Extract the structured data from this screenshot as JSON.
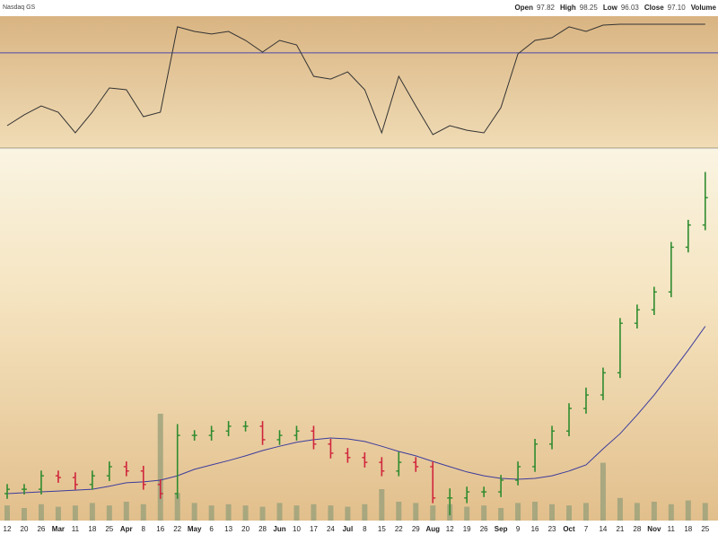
{
  "header": {
    "exchange": "Nasdaq GS",
    "quote": [
      {
        "label": "Open",
        "value": "97.82"
      },
      {
        "label": "High",
        "value": "98.25"
      },
      {
        "label": "Low",
        "value": "96.03"
      },
      {
        "label": "Close",
        "value": "97.10"
      },
      {
        "label": "Volume"
      }
    ]
  },
  "chart_data": [
    {
      "type": "line",
      "ylim": [
        5,
        95
      ],
      "reference": 70,
      "reference_color": "#4a4aa8",
      "series": [
        {
          "color": "#333333",
          "values": [
            20.3,
            27.7,
            33.8,
            29.5,
            15.4,
            29.5,
            46.0,
            44.8,
            26.4,
            29.5,
            87.7,
            84.6,
            82.8,
            84.6,
            78.5,
            70.5,
            78.5,
            75.4,
            54.0,
            52.1,
            57.0,
            44.8,
            15.4,
            54.0,
            33.8,
            14.2,
            20.3,
            17.2,
            15.4,
            32.6,
            69.3,
            78.5,
            80.3,
            87.7,
            84.6,
            88.9,
            89.5,
            89.5,
            89.5,
            89.5,
            89.5,
            89.5
          ]
        }
      ]
    },
    {
      "type": "ohlc",
      "ylim": [
        22.8,
        108.3
      ],
      "up_color": "#2e8b2e",
      "down_color": "#d0243c",
      "categories": [
        "12",
        "20",
        "26",
        "Mar",
        "11",
        "18",
        "25",
        "Apr",
        "8",
        "16",
        "22",
        "May",
        "6",
        "13",
        "20",
        "28",
        "Jun",
        "10",
        "17",
        "24",
        "Jul",
        "8",
        "15",
        "22",
        "29",
        "Aug",
        "12",
        "19",
        "26",
        "Sep",
        "9",
        "16",
        "23",
        "Oct",
        "7",
        "14",
        "21",
        "28",
        "Nov",
        "11",
        "18",
        "25"
      ],
      "open": [
        29.0,
        30.0,
        30.0,
        33.1,
        32.7,
        31.1,
        33.1,
        35.2,
        34.2,
        31.1,
        29.0,
        42.4,
        42.4,
        43.4,
        44.5,
        44.5,
        41.4,
        42.4,
        43.4,
        40.4,
        38.3,
        37.3,
        36.2,
        34.2,
        36.2,
        35.2,
        28.0,
        28.0,
        29.4,
        29.4,
        32.1,
        35.2,
        40.4,
        43.4,
        48.6,
        51.7,
        56.8,
        68.2,
        71.3,
        75.4,
        85.7,
        90.8
      ],
      "high": [
        31.2,
        31.2,
        34.3,
        34.3,
        33.9,
        34.3,
        36.4,
        36.4,
        35.4,
        32.3,
        45.0,
        43.6,
        44.6,
        45.7,
        45.7,
        45.7,
        43.6,
        44.6,
        44.6,
        41.6,
        39.5,
        38.5,
        37.4,
        38.6,
        37.4,
        36.4,
        30.2,
        30.6,
        30.6,
        33.3,
        36.4,
        41.6,
        44.6,
        49.8,
        53.4,
        58.0,
        69.4,
        72.5,
        76.6,
        86.9,
        92.0,
        103.0
      ],
      "low": [
        27.8,
        28.8,
        28.8,
        31.5,
        29.9,
        29.9,
        31.9,
        33.0,
        29.9,
        27.8,
        27.8,
        41.2,
        41.2,
        42.2,
        43.3,
        40.2,
        40.2,
        41.2,
        39.2,
        37.1,
        36.1,
        35.0,
        33.0,
        33.0,
        34.0,
        26.8,
        24.0,
        26.8,
        28.2,
        28.2,
        30.9,
        34.0,
        39.2,
        42.2,
        47.4,
        50.5,
        55.6,
        67.0,
        70.1,
        74.2,
        84.5,
        89.6
      ],
      "close": [
        30.0,
        30.0,
        33.1,
        32.7,
        31.1,
        33.1,
        35.2,
        34.2,
        31.1,
        29.0,
        42.4,
        42.4,
        43.4,
        44.5,
        44.5,
        41.4,
        42.4,
        43.4,
        40.4,
        38.3,
        37.3,
        36.2,
        34.2,
        36.2,
        35.2,
        28.0,
        28.0,
        29.4,
        29.4,
        32.1,
        35.2,
        40.4,
        43.4,
        48.6,
        51.7,
        56.8,
        68.2,
        71.3,
        75.4,
        85.7,
        90.8,
        97.1
      ],
      "moving_average": {
        "color": "#3c3c9c",
        "values": [
          29.0,
          29.2,
          29.4,
          29.6,
          29.8,
          30.0,
          30.7,
          31.5,
          31.7,
          32.1,
          33.1,
          34.6,
          35.6,
          36.6,
          37.7,
          38.9,
          39.9,
          40.8,
          41.4,
          41.8,
          41.6,
          41.0,
          39.9,
          38.7,
          37.7,
          36.4,
          35.2,
          34.0,
          33.1,
          32.5,
          32.3,
          32.5,
          33.1,
          34.2,
          35.6,
          39.3,
          42.8,
          47.1,
          51.7,
          56.8,
          62.0,
          67.5
        ]
      },
      "volume": {
        "color": "#9aa07a",
        "vlim": [
          0,
          100
        ],
        "values": [
          12,
          10,
          13,
          11,
          12,
          14,
          12,
          15,
          13,
          85,
          22,
          14,
          12,
          13,
          12,
          11,
          14,
          12,
          13,
          12,
          11,
          13,
          25,
          15,
          14,
          12,
          13,
          11,
          12,
          10,
          14,
          15,
          13,
          12,
          14,
          46,
          18,
          14,
          15,
          13,
          16,
          14
        ]
      }
    }
  ]
}
